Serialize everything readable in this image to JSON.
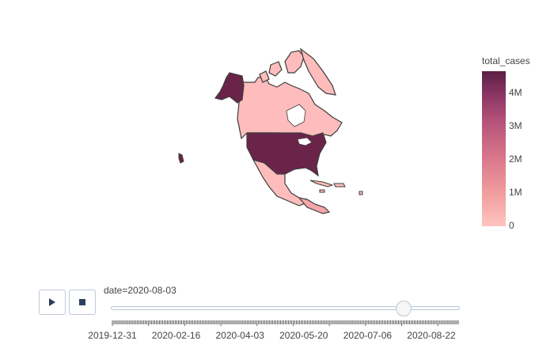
{
  "colorbar": {
    "title": "total_cases",
    "ticks": [
      {
        "label": "4M",
        "value": 4000000
      },
      {
        "label": "3M",
        "value": 3000000
      },
      {
        "label": "2M",
        "value": 2000000
      },
      {
        "label": "1M",
        "value": 1000000
      },
      {
        "label": "0",
        "value": 0
      }
    ],
    "max": 4700000,
    "colors": [
      "#ffc4c0",
      "#f09c9c",
      "#d8758a",
      "#b4527a",
      "#8a3564",
      "#5c1f44"
    ]
  },
  "region_colors": {
    "high": "#6b2449",
    "low": "#ffbcbc",
    "mid": "#f4a6a8",
    "border": "#3d3d3d"
  },
  "animation": {
    "play_icon": "play-icon",
    "stop_icon": "stop-icon",
    "current_label": "date=2020-08-03",
    "current_date": "2020-08-03",
    "progress": 0.84
  },
  "timeline": {
    "labels": [
      "2019-12-31",
      "2020-02-16",
      "2020-04-03",
      "2020-05-20",
      "2020-07-06",
      "2020-08-22"
    ]
  }
}
